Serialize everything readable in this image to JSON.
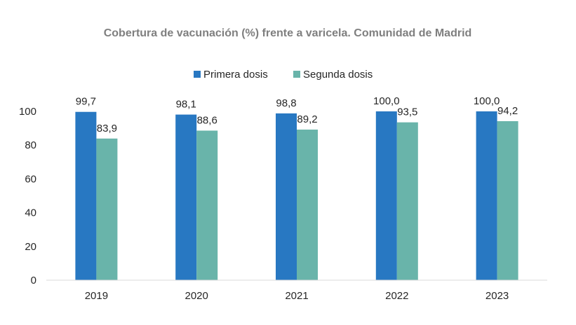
{
  "chart_data": {
    "type": "bar",
    "title": "Cobertura de vacunación (%) frente a varicela. Comunidad de Madrid",
    "xlabel": "",
    "ylabel": "",
    "categories": [
      "2019",
      "2020",
      "2021",
      "2022",
      "2023"
    ],
    "series": [
      {
        "name": "Primera dosis",
        "color": "#2878c2",
        "values": [
          99.7,
          98.1,
          98.8,
          100.0,
          100.0
        ],
        "labels": [
          "99,7",
          "98,1",
          "98,8",
          "100,0",
          "100,0"
        ]
      },
      {
        "name": "Segunda dosis",
        "color": "#69b4aa",
        "values": [
          83.9,
          88.6,
          89.2,
          93.5,
          94.2
        ],
        "labels": [
          "83,9",
          "88,6",
          "89,2",
          "93,5",
          "94,2"
        ]
      }
    ],
    "ylim": [
      0,
      100
    ],
    "yticks": [
      "0",
      "20",
      "40",
      "60",
      "80",
      "100"
    ],
    "grid": false,
    "legend_position": "top"
  }
}
